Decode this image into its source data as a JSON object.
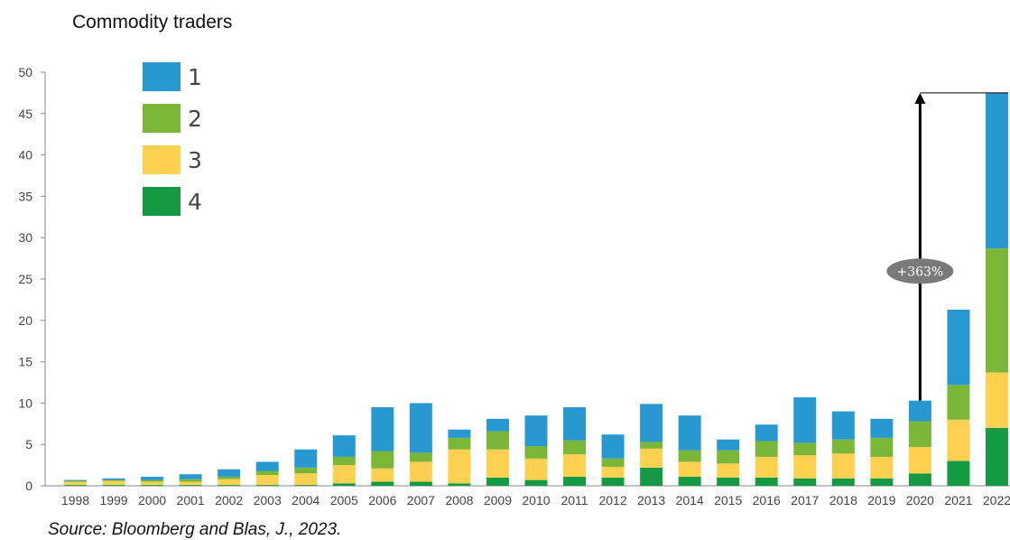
{
  "chart_data": {
    "type": "bar",
    "stacked": true,
    "title": "Commodity traders",
    "categories": [
      "1998",
      "1999",
      "2000",
      "2001",
      "2002",
      "2003",
      "2004",
      "2005",
      "2006",
      "2007",
      "2008",
      "2009",
      "2010",
      "2011",
      "2012",
      "2013",
      "2014",
      "2015",
      "2016",
      "2017",
      "2018",
      "2019",
      "2020",
      "2021",
      "2022"
    ],
    "series": [
      {
        "name": "4",
        "color": "#139a43",
        "values": [
          0.1,
          0.1,
          0.1,
          0.1,
          0.1,
          0.1,
          0.1,
          0.3,
          0.5,
          0.5,
          0.3,
          1.0,
          0.7,
          1.1,
          1.0,
          2.2,
          1.1,
          1.0,
          1.0,
          0.9,
          0.9,
          0.9,
          1.5,
          3.0,
          7.0
        ]
      },
      {
        "name": "3",
        "color": "#fdd14f",
        "values": [
          0.4,
          0.5,
          0.4,
          0.4,
          0.7,
          1.2,
          1.4,
          2.2,
          1.6,
          2.4,
          4.1,
          3.4,
          2.6,
          2.7,
          1.3,
          2.3,
          1.8,
          1.7,
          2.5,
          2.8,
          3.0,
          2.6,
          3.2,
          5.0,
          6.7
        ]
      },
      {
        "name": "2",
        "color": "#7ab637",
        "values": [
          0.1,
          0.1,
          0.2,
          0.3,
          0.3,
          0.5,
          0.7,
          1.0,
          2.1,
          1.1,
          1.4,
          2.2,
          1.5,
          1.7,
          1.0,
          0.8,
          1.4,
          1.6,
          1.9,
          1.5,
          1.7,
          2.3,
          3.1,
          4.2,
          15.0
        ]
      },
      {
        "name": "1",
        "color": "#2898d1",
        "values": [
          0.1,
          0.2,
          0.4,
          0.6,
          0.9,
          1.1,
          2.2,
          2.6,
          5.3,
          6.0,
          1.0,
          1.5,
          3.7,
          4.0,
          2.9,
          4.6,
          4.2,
          1.3,
          2.0,
          5.5,
          3.4,
          2.3,
          2.5,
          9.1,
          18.8
        ]
      }
    ],
    "legend_order": [
      "1",
      "2",
      "3",
      "4"
    ],
    "legend_position": "top-left",
    "ylim": [
      0,
      50
    ],
    "yticks": [
      0,
      5,
      10,
      15,
      20,
      25,
      30,
      35,
      40,
      45,
      50
    ],
    "grid": false,
    "annotation": {
      "text": "+363%",
      "from_category": "2020",
      "to_category": "2022",
      "from_value": 10.3,
      "to_value": 47.5
    }
  },
  "source": "Source: Bloomberg and Blas, J., 2023."
}
